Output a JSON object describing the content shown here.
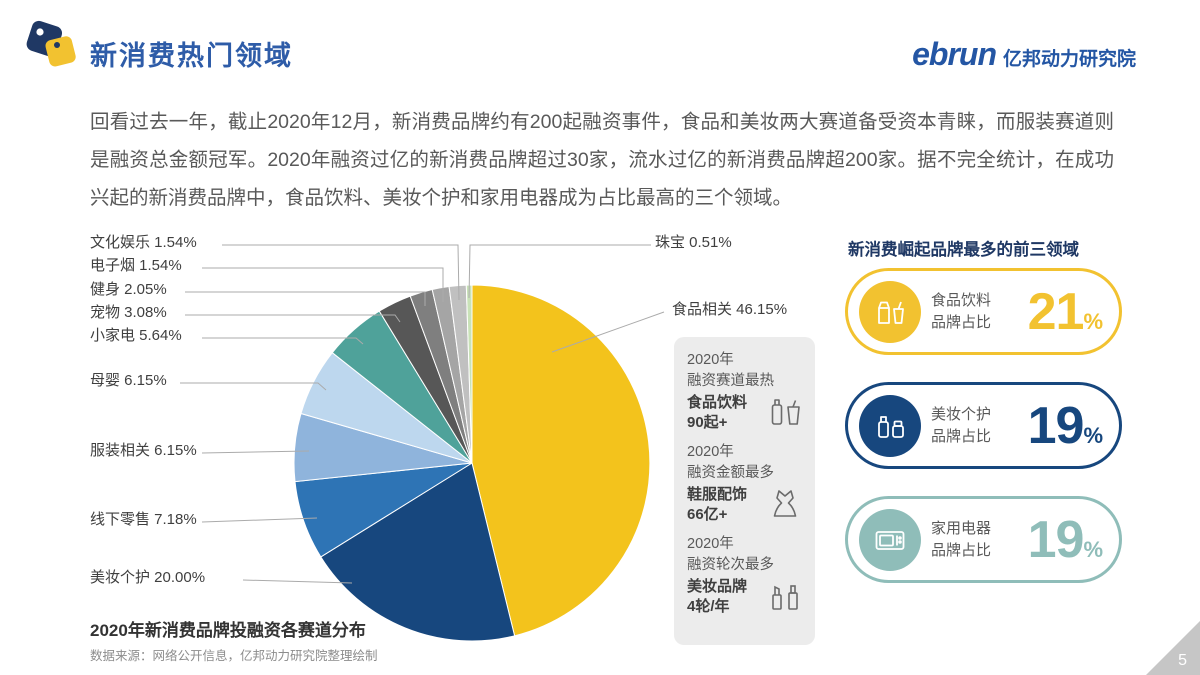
{
  "header": {
    "title": "新消费热门领域",
    "brand_name": "ebrun",
    "brand_suffix": "亿邦动力研究院"
  },
  "intro": {
    "text": "回看过去一年，截止2020年12月，新消费品牌约有200起融资事件，食品和美妆两大赛道备受资本青睐，而服装赛道则是融资总金额冠军。2020年融资过亿的新消费品牌超过30家，流水过亿的新消费品牌超200家。据不完全统计，在成功兴起的新消费品牌中，食品饮料、美妆个护和家用电器成为占比最高的三个领域。"
  },
  "chart_data": {
    "type": "pie",
    "title": "2020年新消费品牌投融资各赛道分布",
    "source": "数据来源：网络公开信息，亿邦动力研究院整理绘制",
    "unit": "%",
    "start_angle": "top, clockwise",
    "slices": [
      {
        "name": "食品相关",
        "value": 46.15,
        "color": "#F3C31C"
      },
      {
        "name": "美妆个护",
        "value": 20.0,
        "color": "#17477E"
      },
      {
        "name": "线下零售",
        "value": 7.18,
        "color": "#2E74B5"
      },
      {
        "name": "服装相关",
        "value": 6.15,
        "color": "#8FB4DC"
      },
      {
        "name": "母婴",
        "value": 6.15,
        "color": "#BDD7EE"
      },
      {
        "name": "小家电",
        "value": 5.64,
        "color": "#4FA29A"
      },
      {
        "name": "宠物",
        "value": 3.08,
        "color": "#575757"
      },
      {
        "name": "健身",
        "value": 2.05,
        "color": "#7F7F7F"
      },
      {
        "name": "电子烟",
        "value": 1.54,
        "color": "#A5A5A5"
      },
      {
        "name": "文化娱乐",
        "value": 1.54,
        "color": "#C0C0C0"
      },
      {
        "name": "珠宝",
        "value": 0.51,
        "color": "#C9E2B8"
      }
    ]
  },
  "highlight_box": {
    "items": [
      {
        "period": "2020年",
        "metric": "融资赛道最热",
        "name": "食品饮料",
        "value": "90起+",
        "icon": "bottles-icon"
      },
      {
        "period": "2020年",
        "metric": "融资金额最多",
        "name": "鞋服配饰",
        "value": "66亿+",
        "icon": "dress-icon"
      },
      {
        "period": "2020年",
        "metric": "融资轮次最多",
        "name": "美妆品牌",
        "value": "4轮/年",
        "icon": "cosmetics-icon"
      }
    ]
  },
  "top3": {
    "heading": "新消费崛起品牌最多的前三领域",
    "items": [
      {
        "line1": "食品饮料",
        "line2": "品牌占比",
        "value": "21",
        "unit": "%",
        "color": "#F2C230",
        "icon": "food-drink-icon"
      },
      {
        "line1": "美妆个护",
        "line2": "品牌占比",
        "value": "19",
        "unit": "%",
        "color": "#17477E",
        "icon": "cosmetics-icon"
      },
      {
        "line1": "家用电器",
        "line2": "品牌占比",
        "value": "19",
        "unit": "%",
        "color": "#8FBDB9",
        "icon": "appliance-icon"
      }
    ]
  },
  "corner": {
    "page": "5"
  }
}
